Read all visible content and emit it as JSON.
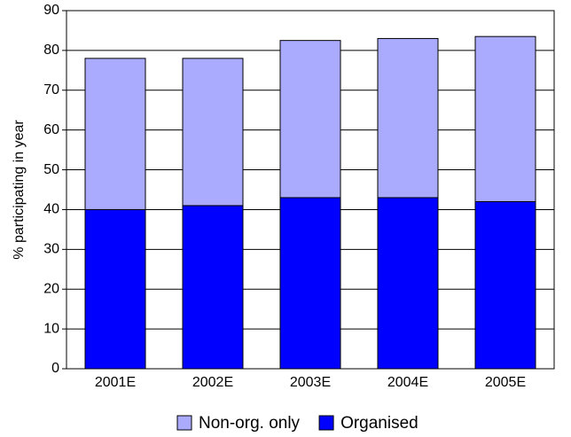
{
  "chart_data": {
    "type": "stacked_bar",
    "y_label": "% participating in year",
    "categories": [
      "2001E",
      "2002E",
      "2003E",
      "2004E",
      "2005E"
    ],
    "series": [
      {
        "name": "Organised",
        "color": "#0000ff",
        "values": [
          40,
          41,
          43,
          43,
          42
        ]
      },
      {
        "name": "Non-org. only",
        "color": "#aaaaff",
        "values": [
          38,
          37,
          39.5,
          40,
          41.5
        ]
      }
    ],
    "ylim": [
      0,
      90
    ],
    "yticks": [
      0,
      10,
      20,
      30,
      40,
      50,
      60,
      70,
      80,
      90
    ],
    "grid": true
  }
}
